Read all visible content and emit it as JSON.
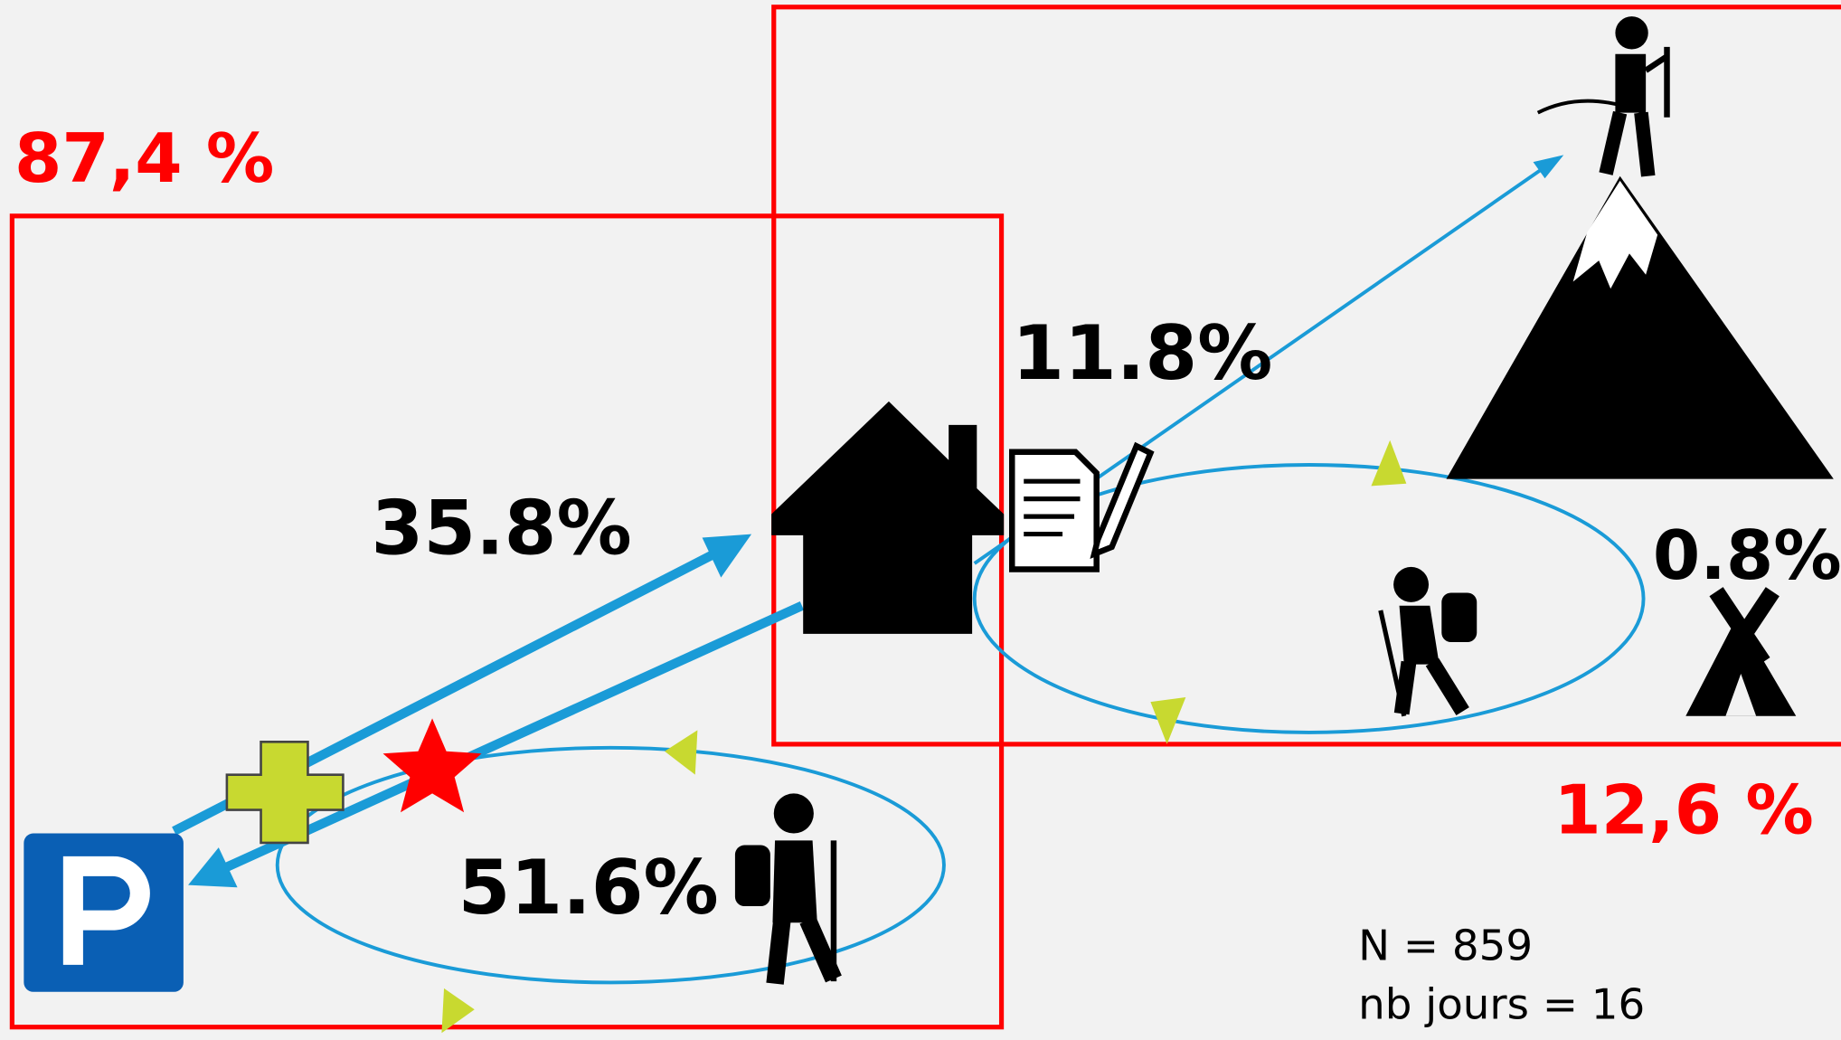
{
  "boxes": [
    {
      "label": "87,4 %"
    },
    {
      "label": "12,6 %"
    }
  ],
  "flows": [
    {
      "label": "35.8%"
    },
    {
      "label": "11.8%"
    },
    {
      "label": "51.6%"
    },
    {
      "label": "0.8%"
    }
  ],
  "note": [
    "N = 859",
    "nb jours = 16"
  ]
}
